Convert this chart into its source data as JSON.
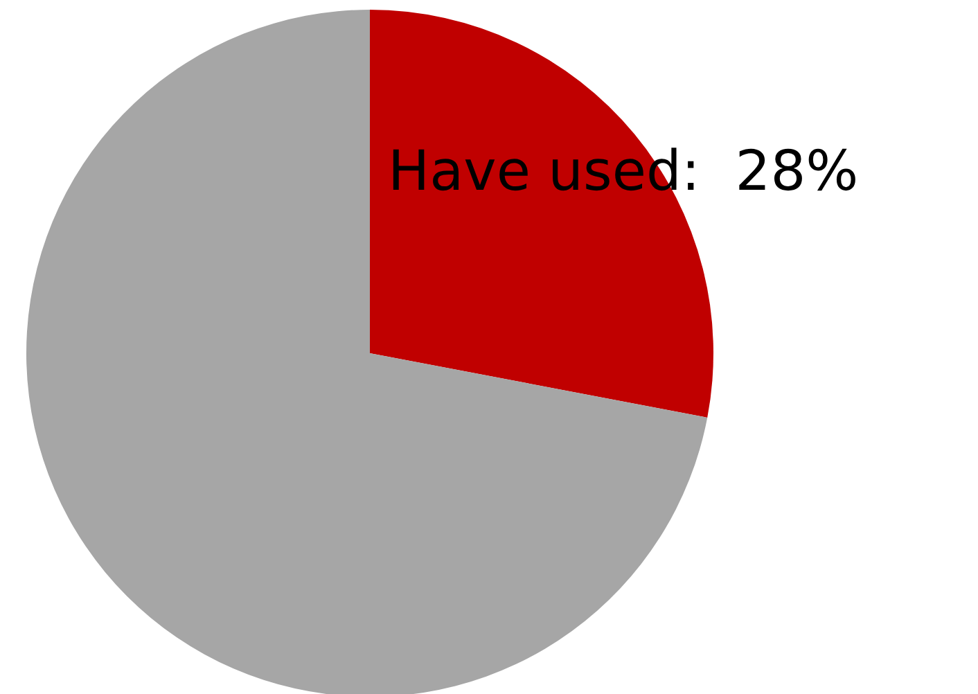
{
  "chart_data": {
    "type": "pie",
    "categories": [
      "Have used",
      null
    ],
    "values": [
      28,
      72
    ],
    "colors": [
      "#c00000",
      "#a6a6a6"
    ],
    "value_labels": [
      "28%",
      null
    ],
    "legend": false
  }
}
